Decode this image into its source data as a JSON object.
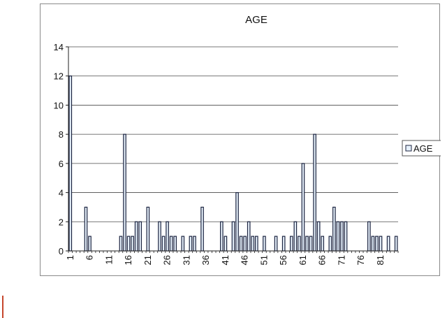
{
  "chart_data": {
    "type": "bar",
    "title": "AGE",
    "xlabel": "",
    "ylabel": "",
    "ylim": [
      0,
      14
    ],
    "ytick_step": 2,
    "grid": true,
    "legend_position": "right",
    "bar_fill": "#e6f0fa",
    "bar_stroke": "#1c2440",
    "series": [
      {
        "name": "AGE",
        "x": [
          1,
          5,
          6,
          14,
          15,
          16,
          17,
          18,
          19,
          21,
          24,
          25,
          26,
          27,
          28,
          30,
          32,
          33,
          35,
          40,
          41,
          43,
          44,
          45,
          46,
          47,
          48,
          49,
          51,
          54,
          56,
          58,
          59,
          60,
          61,
          62,
          63,
          64,
          65,
          66,
          68,
          69,
          70,
          71,
          72,
          78,
          79,
          80,
          81,
          83,
          85
        ],
        "values": [
          12,
          3,
          1,
          1,
          8,
          1,
          1,
          2,
          2,
          3,
          2,
          1,
          2,
          1,
          1,
          1,
          1,
          1,
          3,
          2,
          1,
          2,
          4,
          1,
          1,
          2,
          1,
          1,
          1,
          1,
          1,
          1,
          2,
          1,
          6,
          1,
          1,
          8,
          2,
          1,
          1,
          3,
          2,
          2,
          2,
          2,
          1,
          1,
          1,
          1,
          1
        ]
      }
    ],
    "x_ticks": [
      "1",
      "6",
      "11",
      "16",
      "21",
      "26",
      "31",
      "36",
      "41",
      "46",
      "51",
      "56",
      "61",
      "66",
      "71",
      "76",
      "81"
    ],
    "y_ticks": [
      "0",
      "2",
      "4",
      "6",
      "8",
      "10",
      "12",
      "14"
    ]
  }
}
